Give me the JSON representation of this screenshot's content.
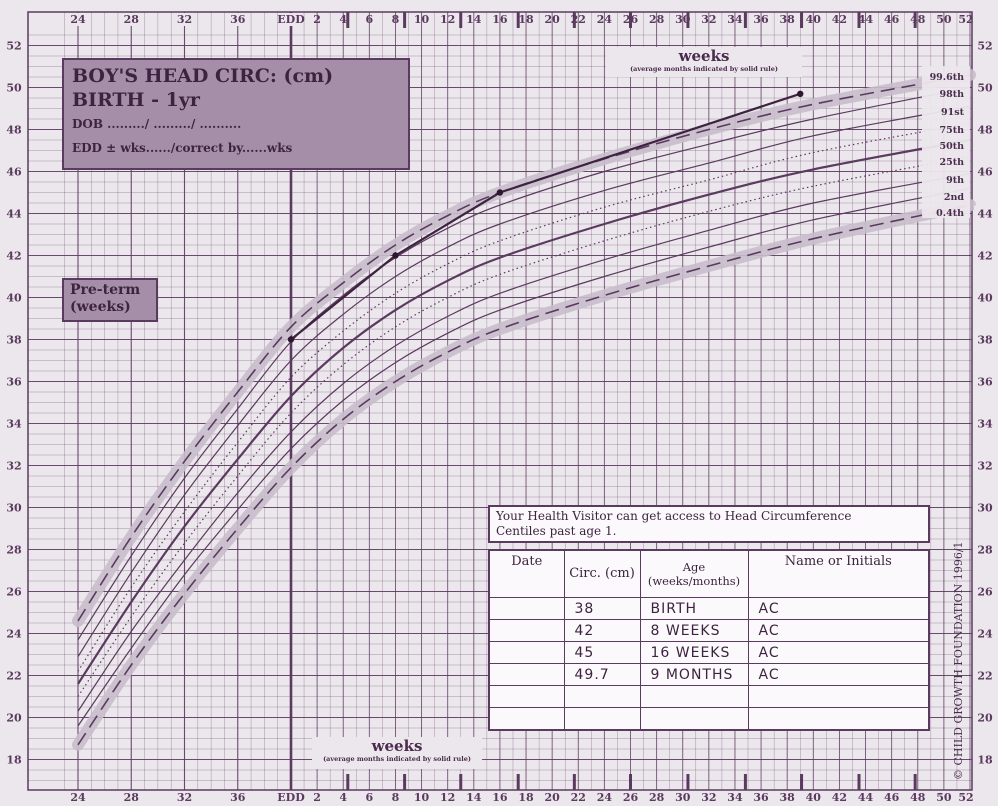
{
  "title": {
    "line1": "BOY'S HEAD CIRC: (cm)",
    "line2": "BIRTH  - 1yr",
    "dob": "DOB ........./ ........./ ..........",
    "edd": "EDD ± wks....../correct by......wks"
  },
  "preterm": {
    "line1": "Pre-term",
    "line2": "(weeks)"
  },
  "weeks_top": {
    "word": "weeks",
    "note": "(average months indicated by solid rule)"
  },
  "weeks_bottom": {
    "word": "weeks",
    "note": "(average months indicated by solid rule)"
  },
  "health_visitor_note": {
    "line1": "Your Health Visitor can get access to Head Circumference",
    "line2": "Centiles past age 1."
  },
  "record_table": {
    "headers": {
      "date": "Date",
      "circ": "Circ. (cm)",
      "age": "Age (weeks/months)",
      "name": "Name or Initials"
    },
    "rows": [
      {
        "date": "",
        "circ": "38",
        "age": "BIRTH",
        "name": "AC"
      },
      {
        "date": "",
        "circ": "42",
        "age": "8 WEEKS",
        "name": "AC"
      },
      {
        "date": "",
        "circ": "45",
        "age": "16 WEEKS",
        "name": "AC"
      },
      {
        "date": "",
        "circ": "49.7",
        "age": "9 MONTHS",
        "name": "AC"
      },
      {
        "date": "",
        "circ": "",
        "age": "",
        "name": ""
      },
      {
        "date": "",
        "circ": "",
        "age": "",
        "name": ""
      }
    ]
  },
  "copyright": "© CHILD GROWTH FOUNDATION 1996/1",
  "colors": {
    "ink": "#5a3a5e",
    "paper": "#ece7ec",
    "label_box": "#a58fa8",
    "band": "#c9bccb"
  },
  "chart_data": {
    "type": "line",
    "xlabel": "weeks",
    "ylabel": "",
    "x_domain_note": "preterm weeks 23–40 (EDD), then weeks after EDD 0–52",
    "ylim": [
      17,
      52.5
    ],
    "y_ticks_left": [
      18,
      20,
      22,
      24,
      26,
      28,
      30,
      32,
      34,
      36,
      38,
      40,
      42,
      44,
      46,
      48,
      50,
      52
    ],
    "y_ticks_right": [
      18,
      20,
      22,
      24,
      26,
      28,
      30,
      32,
      34,
      36,
      38,
      40,
      42,
      44,
      46,
      48,
      50,
      52
    ],
    "x_ticks_preterm": [
      "24",
      "28",
      "32",
      "36",
      "EDD"
    ],
    "x_ticks_postterm": [
      "2",
      "4",
      "6",
      "8",
      "10",
      "12",
      "14",
      "16",
      "18",
      "20",
      "22",
      "24",
      "26",
      "28",
      "30",
      "32",
      "34",
      "36",
      "38",
      "40",
      "42",
      "44",
      "46",
      "48",
      "50",
      "52"
    ],
    "centile_labels": [
      "99.6th",
      "98th",
      "91st",
      "75th",
      "50th",
      "25th",
      "9th",
      "2nd",
      "0.4th"
    ],
    "series": [
      {
        "name": "99.6th",
        "style": "dashed",
        "points": [
          [
            -16,
            24.6
          ],
          [
            -12,
            28.6
          ],
          [
            -8,
            32.2
          ],
          [
            -4,
            35.5
          ],
          [
            0,
            38.6
          ],
          [
            4,
            40.7
          ],
          [
            8,
            42.5
          ],
          [
            12,
            43.9
          ],
          [
            16,
            45.0
          ],
          [
            24,
            46.6
          ],
          [
            32,
            48.0
          ],
          [
            40,
            49.2
          ],
          [
            52,
            50.6
          ]
        ]
      },
      {
        "name": "98th",
        "style": "solid",
        "points": [
          [
            -16,
            23.7
          ],
          [
            -12,
            27.7
          ],
          [
            -8,
            31.4
          ],
          [
            -4,
            34.7
          ],
          [
            0,
            37.9
          ],
          [
            4,
            40.1
          ],
          [
            8,
            41.9
          ],
          [
            12,
            43.3
          ],
          [
            16,
            44.4
          ],
          [
            24,
            46.0
          ],
          [
            32,
            47.3
          ],
          [
            40,
            48.5
          ],
          [
            52,
            50.0
          ]
        ]
      },
      {
        "name": "91st",
        "style": "solid",
        "points": [
          [
            -16,
            22.9
          ],
          [
            -12,
            26.9
          ],
          [
            -8,
            30.6
          ],
          [
            -4,
            33.9
          ],
          [
            0,
            37.0
          ],
          [
            4,
            39.2
          ],
          [
            8,
            41.0
          ],
          [
            12,
            42.4
          ],
          [
            16,
            43.5
          ],
          [
            24,
            45.1
          ],
          [
            32,
            46.4
          ],
          [
            40,
            47.7
          ],
          [
            52,
            49.1
          ]
        ]
      },
      {
        "name": "75th",
        "style": "dotted",
        "points": [
          [
            -16,
            22.2
          ],
          [
            -12,
            26.2
          ],
          [
            -8,
            29.8
          ],
          [
            -4,
            33.1
          ],
          [
            0,
            36.2
          ],
          [
            4,
            38.4
          ],
          [
            8,
            40.2
          ],
          [
            12,
            41.6
          ],
          [
            16,
            42.7
          ],
          [
            24,
            44.3
          ],
          [
            32,
            45.6
          ],
          [
            40,
            46.9
          ],
          [
            52,
            48.3
          ]
        ]
      },
      {
        "name": "50th",
        "style": "bold",
        "points": [
          [
            -16,
            21.6
          ],
          [
            -12,
            25.5
          ],
          [
            -8,
            29.1
          ],
          [
            -4,
            32.3
          ],
          [
            0,
            35.3
          ],
          [
            4,
            37.6
          ],
          [
            8,
            39.4
          ],
          [
            12,
            40.8
          ],
          [
            16,
            41.9
          ],
          [
            24,
            43.5
          ],
          [
            32,
            44.9
          ],
          [
            40,
            46.1
          ],
          [
            52,
            47.5
          ]
        ]
      },
      {
        "name": "25th",
        "style": "dotted",
        "points": [
          [
            -16,
            21.0
          ],
          [
            -12,
            24.8
          ],
          [
            -8,
            28.3
          ],
          [
            -4,
            31.5
          ],
          [
            0,
            34.5
          ],
          [
            4,
            36.8
          ],
          [
            8,
            38.6
          ],
          [
            12,
            40.0
          ],
          [
            16,
            41.1
          ],
          [
            24,
            42.7
          ],
          [
            32,
            44.1
          ],
          [
            40,
            45.3
          ],
          [
            52,
            46.7
          ]
        ]
      },
      {
        "name": "9th",
        "style": "solid",
        "points": [
          [
            -16,
            20.3
          ],
          [
            -12,
            24.1
          ],
          [
            -8,
            27.5
          ],
          [
            -4,
            30.7
          ],
          [
            0,
            33.6
          ],
          [
            4,
            35.9
          ],
          [
            8,
            37.7
          ],
          [
            12,
            39.1
          ],
          [
            16,
            40.2
          ],
          [
            24,
            41.8
          ],
          [
            32,
            43.2
          ],
          [
            40,
            44.5
          ],
          [
            52,
            45.9
          ]
        ]
      },
      {
        "name": "2nd",
        "style": "solid",
        "points": [
          [
            -16,
            19.6
          ],
          [
            -12,
            23.3
          ],
          [
            -8,
            26.8
          ],
          [
            -4,
            29.9
          ],
          [
            0,
            32.8
          ],
          [
            4,
            35.1
          ],
          [
            8,
            36.9
          ],
          [
            12,
            38.3
          ],
          [
            16,
            39.4
          ],
          [
            24,
            41.0
          ],
          [
            32,
            42.4
          ],
          [
            40,
            43.7
          ],
          [
            52,
            45.2
          ]
        ]
      },
      {
        "name": "0.4th",
        "style": "dashed",
        "points": [
          [
            -16,
            18.7
          ],
          [
            -12,
            22.5
          ],
          [
            -8,
            25.9
          ],
          [
            -4,
            29.0
          ],
          [
            0,
            31.9
          ],
          [
            4,
            34.2
          ],
          [
            8,
            36.0
          ],
          [
            12,
            37.4
          ],
          [
            16,
            38.5
          ],
          [
            24,
            40.1
          ],
          [
            32,
            41.5
          ],
          [
            40,
            42.8
          ],
          [
            52,
            44.4
          ]
        ]
      }
    ],
    "measurements": [
      {
        "x": 0,
        "y": 38
      },
      {
        "x": 8,
        "y": 42
      },
      {
        "x": 16,
        "y": 45
      },
      {
        "x": 39,
        "y": 49.7
      }
    ]
  }
}
